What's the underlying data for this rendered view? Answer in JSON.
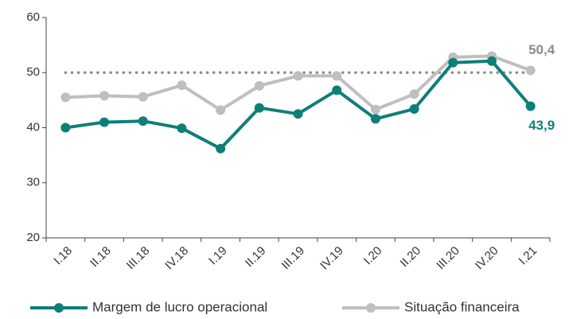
{
  "chart_data": {
    "type": "line",
    "categories": [
      "I.18",
      "II.18",
      "III.18",
      "IV.18",
      "I.19",
      "II.19",
      "III.19",
      "IV.19",
      "I.20",
      "II.20",
      "III.20",
      "IV.20",
      "I.21"
    ],
    "series": [
      {
        "name": "Margem de lucro operacional",
        "color": "#0e7f78",
        "values": [
          40.0,
          41.0,
          41.2,
          39.9,
          36.2,
          43.6,
          42.5,
          46.8,
          41.6,
          43.4,
          51.8,
          52.1,
          43.9
        ],
        "value_labels": [
          null,
          null,
          null,
          null,
          null,
          null,
          null,
          null,
          null,
          null,
          null,
          null,
          "43,9"
        ]
      },
      {
        "name": "Situação financeira",
        "color": "#bfbfbf",
        "values": [
          45.5,
          45.8,
          45.6,
          47.7,
          43.2,
          47.6,
          49.4,
          49.4,
          43.3,
          46.1,
          52.8,
          53.0,
          50.4
        ],
        "value_labels": [
          null,
          null,
          null,
          null,
          null,
          null,
          null,
          null,
          null,
          null,
          null,
          null,
          "50,4"
        ]
      }
    ],
    "reference_line": {
      "value": 50,
      "color": "#8c8c8c"
    },
    "ylim": [
      20,
      60
    ],
    "yticks": [
      20,
      30,
      40,
      50,
      60
    ],
    "grid": false,
    "legend": "bottom"
  }
}
